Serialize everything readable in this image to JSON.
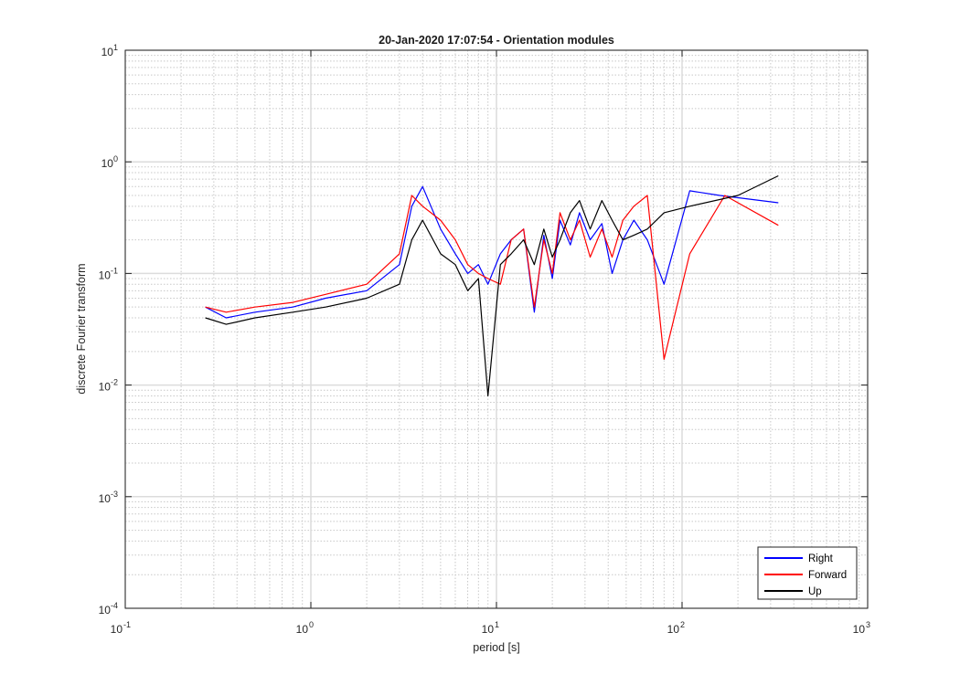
{
  "chart_data": {
    "type": "line",
    "title": "20-Jan-2020 17:07:54 - Orientation modules",
    "xlabel": "period [s]",
    "ylabel": "discrete Fourier transform",
    "xscale": "log",
    "yscale": "log",
    "xlim": [
      0.1,
      1000
    ],
    "ylim": [
      0.0001,
      10
    ],
    "x_ticks": [
      {
        "base": "10",
        "exp": "-1"
      },
      {
        "base": "10",
        "exp": "0"
      },
      {
        "base": "10",
        "exp": "1"
      },
      {
        "base": "10",
        "exp": "2"
      },
      {
        "base": "10",
        "exp": "3"
      }
    ],
    "y_ticks": [
      {
        "base": "10",
        "exp": "-4"
      },
      {
        "base": "10",
        "exp": "-3"
      },
      {
        "base": "10",
        "exp": "-2"
      },
      {
        "base": "10",
        "exp": "-1"
      },
      {
        "base": "10",
        "exp": "0"
      },
      {
        "base": "10",
        "exp": "1"
      }
    ],
    "grid": true,
    "minor_grid": true,
    "legend_position": "bottom-right",
    "series": [
      {
        "name": "Right",
        "color": "#0000ff",
        "x": [
          0.27,
          0.35,
          0.5,
          0.8,
          1.2,
          2.0,
          3.0,
          3.5,
          4.0,
          5.0,
          6.0,
          7.0,
          8.0,
          9.0,
          10.5,
          12.0,
          14.0,
          16.0,
          18.0,
          20.0,
          22.0,
          25.0,
          28.0,
          32.0,
          37.0,
          42.0,
          48.0,
          55.0,
          65.0,
          80.0,
          110.0,
          160.0,
          330.0
        ],
        "y": [
          0.05,
          0.04,
          0.045,
          0.05,
          0.06,
          0.07,
          0.12,
          0.4,
          0.6,
          0.25,
          0.15,
          0.1,
          0.12,
          0.08,
          0.15,
          0.2,
          0.25,
          0.045,
          0.22,
          0.09,
          0.3,
          0.18,
          0.35,
          0.2,
          0.28,
          0.1,
          0.2,
          0.3,
          0.2,
          0.08,
          0.55,
          0.5,
          0.43
        ]
      },
      {
        "name": "Forward",
        "color": "#ff0000",
        "x": [
          0.27,
          0.35,
          0.5,
          0.8,
          1.2,
          2.0,
          3.0,
          3.5,
          4.0,
          5.0,
          6.0,
          7.0,
          8.0,
          9.0,
          10.5,
          12.0,
          14.0,
          16.0,
          18.0,
          20.0,
          22.0,
          25.0,
          28.0,
          32.0,
          37.0,
          42.0,
          48.0,
          55.0,
          65.0,
          80.0,
          110.0,
          170.0,
          330.0
        ],
        "y": [
          0.05,
          0.045,
          0.05,
          0.055,
          0.065,
          0.08,
          0.15,
          0.5,
          0.4,
          0.3,
          0.2,
          0.12,
          0.1,
          0.09,
          0.08,
          0.2,
          0.25,
          0.05,
          0.2,
          0.1,
          0.35,
          0.2,
          0.3,
          0.14,
          0.25,
          0.14,
          0.3,
          0.4,
          0.5,
          0.017,
          0.15,
          0.5,
          0.27
        ]
      },
      {
        "name": "Up",
        "color": "#000000",
        "x": [
          0.27,
          0.35,
          0.5,
          0.8,
          1.2,
          2.0,
          3.0,
          3.5,
          4.0,
          5.0,
          6.0,
          7.0,
          8.0,
          9.0,
          10.5,
          12.0,
          14.0,
          16.0,
          18.0,
          20.0,
          22.0,
          25.0,
          28.0,
          32.0,
          37.0,
          42.0,
          48.0,
          55.0,
          65.0,
          80.0,
          110.0,
          200.0,
          330.0
        ],
        "y": [
          0.04,
          0.035,
          0.04,
          0.045,
          0.05,
          0.06,
          0.08,
          0.2,
          0.3,
          0.15,
          0.12,
          0.07,
          0.09,
          0.008,
          0.12,
          0.15,
          0.2,
          0.12,
          0.25,
          0.14,
          0.2,
          0.35,
          0.45,
          0.25,
          0.45,
          0.3,
          0.2,
          0.22,
          0.25,
          0.35,
          0.4,
          0.5,
          0.75
        ]
      }
    ]
  }
}
